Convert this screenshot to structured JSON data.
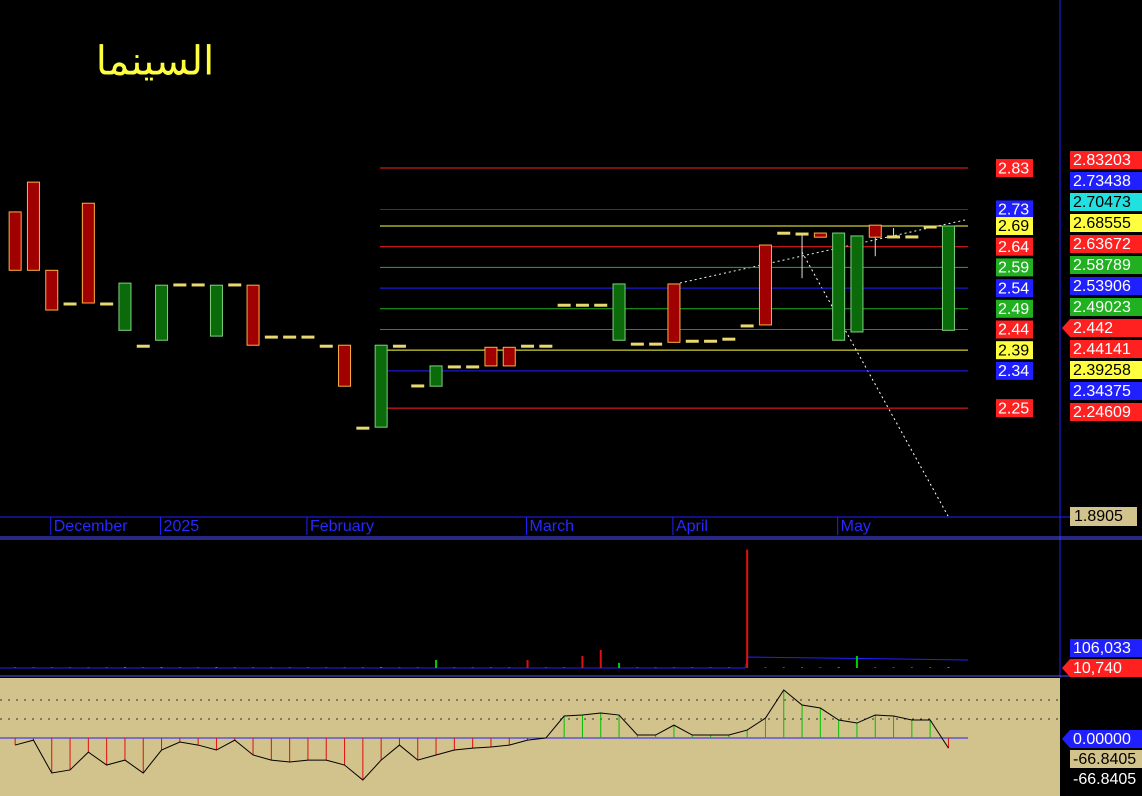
{
  "chart_data": [
    {
      "type": "candlestick",
      "title": "السينما",
      "categories": [
        null,
        null,
        null,
        null,
        null,
        null,
        null,
        null,
        null,
        null,
        null,
        null,
        null,
        null,
        null,
        null,
        null,
        null,
        null,
        null,
        null,
        null,
        null,
        null,
        null,
        null,
        null,
        null,
        null,
        null,
        null,
        null,
        null,
        null,
        null,
        null,
        null,
        null,
        null,
        null,
        null,
        null,
        null,
        null,
        null,
        null,
        null,
        null,
        null,
        null,
        null,
        null
      ],
      "open": [
        2.724,
        2.796,
        2.583,
        2.504,
        2.745,
        2.504,
        2.438,
        2.402,
        2.414,
        2.55,
        2.55,
        2.424,
        2.55,
        2.547,
        2.424,
        2.424,
        2.424,
        2.402,
        2.402,
        2.204,
        2.204,
        2.402,
        2.306,
        2.303,
        2.352,
        2.352,
        2.397,
        2.397,
        2.402,
        2.402,
        2.501,
        2.501,
        2.501,
        2.414,
        2.407,
        2.407,
        2.55,
        2.414,
        2.414,
        2.419,
        2.451,
        2.644,
        2.675,
        2.673,
        2.673,
        2.414,
        2.434,
        2.692,
        2.666,
        2.666,
        2.69,
        2.438
      ],
      "high": [
        2.724,
        2.796,
        2.583,
        2.504,
        2.745,
        2.504,
        2.552,
        2.402,
        2.547,
        2.55,
        2.55,
        2.547,
        2.55,
        2.547,
        2.424,
        2.424,
        2.424,
        2.402,
        2.402,
        2.204,
        2.402,
        2.402,
        2.306,
        2.352,
        2.352,
        2.352,
        2.397,
        2.397,
        2.402,
        2.402,
        2.501,
        2.501,
        2.501,
        2.55,
        2.407,
        2.407,
        2.55,
        2.414,
        2.414,
        2.419,
        2.451,
        2.644,
        2.675,
        2.673,
        2.673,
        2.673,
        2.666,
        2.692,
        2.685,
        2.666,
        2.69,
        2.69
      ],
      "low": [
        2.583,
        2.583,
        2.487,
        2.504,
        2.504,
        2.504,
        2.438,
        2.402,
        2.414,
        2.55,
        2.55,
        2.424,
        2.55,
        2.402,
        2.424,
        2.424,
        2.424,
        2.402,
        2.303,
        2.204,
        2.204,
        2.402,
        2.306,
        2.303,
        2.352,
        2.352,
        2.352,
        2.352,
        2.402,
        2.402,
        2.501,
        2.501,
        2.501,
        2.414,
        2.407,
        2.407,
        2.409,
        2.414,
        2.414,
        2.419,
        2.451,
        2.451,
        2.675,
        2.564,
        2.663,
        2.414,
        2.434,
        2.617,
        2.666,
        2.666,
        2.69,
        2.438
      ],
      "close": [
        2.583,
        2.583,
        2.487,
        2.504,
        2.504,
        2.504,
        2.552,
        2.402,
        2.547,
        2.55,
        2.55,
        2.547,
        2.55,
        2.402,
        2.424,
        2.424,
        2.424,
        2.402,
        2.303,
        2.204,
        2.402,
        2.402,
        2.306,
        2.352,
        2.352,
        2.352,
        2.352,
        2.352,
        2.402,
        2.402,
        2.501,
        2.501,
        2.501,
        2.55,
        2.407,
        2.407,
        2.409,
        2.414,
        2.414,
        2.419,
        2.451,
        2.451,
        2.675,
        2.673,
        2.663,
        2.673,
        2.666,
        2.663,
        2.666,
        2.666,
        2.69,
        2.69
      ],
      "up_color": "#0b6b0b",
      "down_color": "#a00000",
      "flat_color": "#e8d870",
      "ylim": [
        1.987,
        3.236
      ],
      "xticks": [
        {
          "value": 2,
          "label": "December"
        },
        {
          "value": 8,
          "label": "2025"
        },
        {
          "value": 16,
          "label": "February"
        },
        {
          "value": 28,
          "label": "March"
        },
        {
          "value": 36,
          "label": "April"
        },
        {
          "value": 45,
          "label": "May"
        }
      ],
      "levels": [
        {
          "value": 2.83,
          "color": "#ff2020"
        },
        {
          "value": 2.73,
          "color": "#2020ff"
        },
        {
          "value": 2.69,
          "color": "#ffff40"
        },
        {
          "value": 2.64,
          "color": "#ff2020"
        },
        {
          "value": 2.59,
          "color": "#20b020"
        },
        {
          "value": 2.54,
          "color": "#2020ff"
        },
        {
          "value": 2.49,
          "color": "#20b020"
        },
        {
          "value": 2.44,
          "color": "#ff2020"
        },
        {
          "value": 2.39,
          "color": "#ffff40"
        },
        {
          "value": 2.34,
          "color": "#2020ff"
        },
        {
          "value": 2.25,
          "color": "#ff2020"
        }
      ],
      "right_labels": [
        {
          "value": 2.83203,
          "color": "#ff2020"
        },
        {
          "value": 2.73438,
          "color": "#2020ff"
        },
        {
          "value": 2.70473,
          "color": "#20e0e0"
        },
        {
          "value": 2.68555,
          "color": "#ffff40"
        },
        {
          "value": 2.63672,
          "color": "#ff2020"
        },
        {
          "value": 2.58789,
          "color": "#20b020"
        },
        {
          "value": 2.53906,
          "color": "#2020ff"
        },
        {
          "value": 2.49023,
          "color": "#20b020"
        },
        {
          "value": 2.442,
          "color": "#ff2020"
        },
        {
          "value": 2.44141,
          "color": "#ff2020"
        },
        {
          "value": 2.39258,
          "color": "#ffff40"
        },
        {
          "value": 2.34375,
          "color": "#2020ff"
        },
        {
          "value": 2.24609,
          "color": "#ff2020"
        }
      ],
      "bottom_label": 1.8905
    },
    {
      "type": "bar",
      "values": [
        5000,
        5000,
        5000,
        5000,
        5000,
        5000,
        5000,
        5000,
        5000,
        5000,
        5000,
        5000,
        5000,
        5000,
        5000,
        5000,
        5000,
        5000,
        5000,
        5000,
        5000,
        5000,
        5000,
        43000,
        5000,
        5000,
        5000,
        5000,
        43000,
        5000,
        5000,
        64000,
        96000,
        27000,
        5000,
        5000,
        5000,
        5000,
        5000,
        5000,
        629000,
        5000,
        5000,
        5000,
        5000,
        5000,
        64000,
        5000,
        5000,
        5000,
        5000,
        5000
      ],
      "ylim": [
        0,
        680000
      ],
      "right_labels": [
        {
          "value": 106033,
          "label": "106,033",
          "color": "#2020ff"
        },
        {
          "value": 10740,
          "label": "10,740",
          "color": "#ff2020"
        }
      ]
    },
    {
      "type": "stem",
      "values": [
        -37,
        -11,
        -184,
        -168,
        -74,
        -142,
        -116,
        -184,
        -63,
        -21,
        -37,
        -63,
        -11,
        -89,
        -116,
        -126,
        -116,
        -116,
        -142,
        -221,
        -116,
        -37,
        -116,
        -89,
        -63,
        -53,
        -47,
        -37,
        -11,
        0,
        116,
        121,
        132,
        121,
        16,
        16,
        68,
        16,
        16,
        16,
        42,
        105,
        253,
        174,
        158,
        95,
        79,
        121,
        116,
        95,
        95,
        -53
      ],
      "up_color": "#00c000",
      "down_color": "#e01010",
      "ylim": [
        -305,
        316
      ],
      "yticks": [
        100,
        200
      ],
      "grid": true,
      "right_labels": [
        {
          "value": 0,
          "label": "0.00000",
          "color": "#2020ff"
        },
        {
          "value": -66.8405,
          "color": "#d2c28c"
        },
        {
          "value": -66.8405,
          "color": "#000000"
        }
      ]
    }
  ]
}
